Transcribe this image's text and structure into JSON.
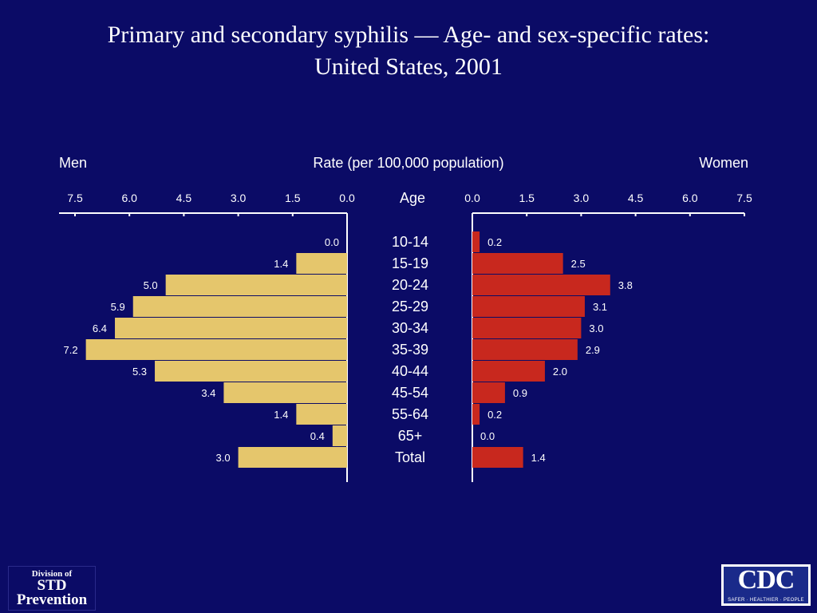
{
  "title_line1": "Primary and secondary syphilis — Age- and sex-specific rates:",
  "title_line2": "United States, 2001",
  "logos": {
    "left": [
      "Division of",
      "STD",
      "Prevention"
    ],
    "right_text": "CDC",
    "right_tagline": "SAFER · HEALTHIER · PEOPLE"
  },
  "colors": {
    "background": "#0b0b66",
    "men": "#e5c66c",
    "women": "#c8281e",
    "text": "#ffffff"
  },
  "chart_data": {
    "type": "bar",
    "orientation": "horizontal-population-pyramid",
    "title": "Rate (per 100,000 population)",
    "left_label": "Men",
    "right_label": "Women",
    "center_label": "Age",
    "categories": [
      "10-14",
      "15-19",
      "20-24",
      "25-29",
      "30-34",
      "35-39",
      "40-44",
      "45-54",
      "55-64",
      "65+",
      "Total"
    ],
    "series": [
      {
        "name": "Men",
        "values": [
          0.0,
          1.4,
          5.0,
          5.9,
          6.4,
          7.2,
          5.3,
          3.4,
          1.4,
          0.4,
          3.0
        ]
      },
      {
        "name": "Women",
        "values": [
          0.2,
          2.5,
          3.8,
          3.1,
          3.0,
          2.9,
          2.0,
          0.9,
          0.2,
          0.0,
          1.4
        ]
      }
    ],
    "value_labels": {
      "men": [
        "0.0",
        "1.4",
        "5.0",
        "5.9",
        "6.4",
        "7.2",
        "5.3",
        "3.4",
        "1.4",
        "0.4",
        "3.0"
      ],
      "women": [
        "0.2",
        "2.5",
        "3.8",
        "3.1",
        "3.0",
        "2.9",
        "2.0",
        "0.9",
        "0.2",
        "0.0",
        "1.4"
      ]
    },
    "xlim": [
      0,
      7.5
    ],
    "ticks": [
      0.0,
      1.5,
      3.0,
      4.5,
      6.0,
      7.5
    ],
    "tick_labels": [
      "0.0",
      "1.5",
      "3.0",
      "4.5",
      "6.0",
      "7.5"
    ]
  }
}
